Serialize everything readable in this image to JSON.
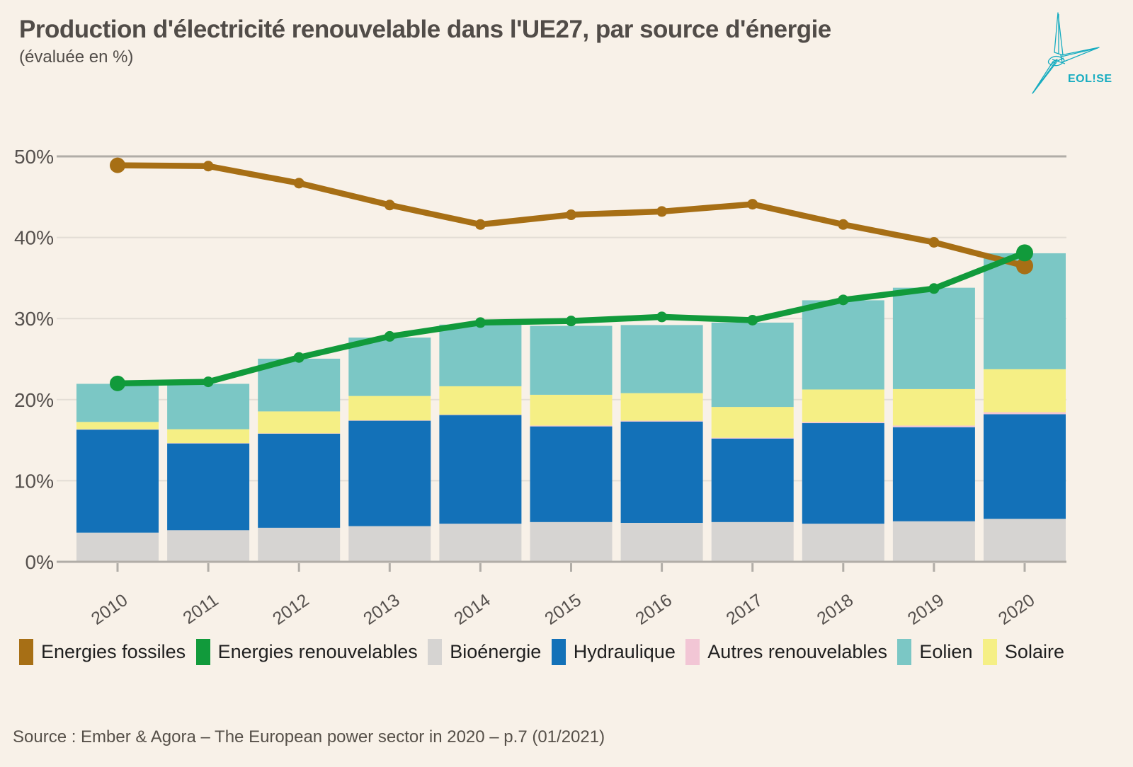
{
  "header": {
    "title": "Production d'électricité renouvelable dans l'UE27, par source d'énergie",
    "subtitle": "(évaluée en %)"
  },
  "logo": {
    "brand": "EOL!SE",
    "color": "#16ACC0"
  },
  "source": "Source : Ember & Agora – The European power sector in 2020 – p.7 (01/2021)",
  "colors": {
    "background": "#F8F1E8",
    "title_text": "#514C48",
    "axis_text": "#55504D",
    "legend_text": "#1F1F1F",
    "grid_light": "#E3DDD5",
    "grid_strong": "#B1ADA7"
  },
  "chart_data": {
    "type": "stacked-bar+line",
    "title": "Production d'électricité renouvelable dans l'UE27, par source d'énergie (évaluée en %)",
    "unit": "%",
    "categories": [
      "2010",
      "2011",
      "2012",
      "2013",
      "2014",
      "2015",
      "2016",
      "2017",
      "2018",
      "2019",
      "2020"
    ],
    "y_axis": {
      "min": 0,
      "max": 50,
      "tick_step": 10,
      "tick_labels": [
        "0%",
        "10%",
        "20%",
        "30%",
        "40%",
        "50%"
      ]
    },
    "bar_series": [
      {
        "name": "Bioénergie",
        "color": "#D6D4D2",
        "values": [
          3.6,
          3.9,
          4.2,
          4.4,
          4.7,
          4.9,
          4.8,
          4.9,
          4.7,
          5.0,
          5.3
        ]
      },
      {
        "name": "Hydraulique",
        "color": "#1371B8",
        "values": [
          12.7,
          10.7,
          11.6,
          13.0,
          13.4,
          11.8,
          12.5,
          10.3,
          12.4,
          11.6,
          12.9
        ]
      },
      {
        "name": "Autres renouvelables",
        "color": "#F2C6D5",
        "values": [
          0.05,
          0.05,
          0.05,
          0.05,
          0.05,
          0.1,
          0.1,
          0.1,
          0.15,
          0.2,
          0.25
        ]
      },
      {
        "name": "Solaire",
        "color": "#F5EF85",
        "values": [
          0.9,
          1.7,
          2.7,
          3.0,
          3.5,
          3.8,
          3.4,
          3.8,
          4.0,
          4.5,
          5.3
        ]
      },
      {
        "name": "Eolien",
        "color": "#7BC7C5",
        "values": [
          4.7,
          5.6,
          6.5,
          7.2,
          7.6,
          8.5,
          8.4,
          10.4,
          11.0,
          12.5,
          14.3
        ]
      }
    ],
    "line_series": [
      {
        "name": "Energies fossiles",
        "color": "#A76F15",
        "values": [
          48.9,
          48.8,
          46.7,
          44.0,
          41.6,
          42.8,
          43.2,
          44.1,
          41.6,
          39.4,
          36.5
        ]
      },
      {
        "name": "Energies renouvelables",
        "color": "#119A3B",
        "values": [
          22.0,
          22.2,
          25.2,
          27.8,
          29.5,
          29.7,
          30.2,
          29.8,
          32.3,
          33.7,
          38.1
        ]
      }
    ],
    "legend": [
      {
        "label": "Energies fossiles",
        "color": "#A76F15"
      },
      {
        "label": "Energies renouvelables",
        "color": "#119A3B"
      },
      {
        "label": "Bioénergie",
        "color": "#D6D4D2"
      },
      {
        "label": "Hydraulique",
        "color": "#1371B8"
      },
      {
        "label": "Autres renouvelables",
        "color": "#F2C6D5"
      },
      {
        "label": "Eolien",
        "color": "#7BC7C5"
      },
      {
        "label": "Solaire",
        "color": "#F5EF85"
      }
    ],
    "legend_position": "bottom",
    "grid": true
  }
}
